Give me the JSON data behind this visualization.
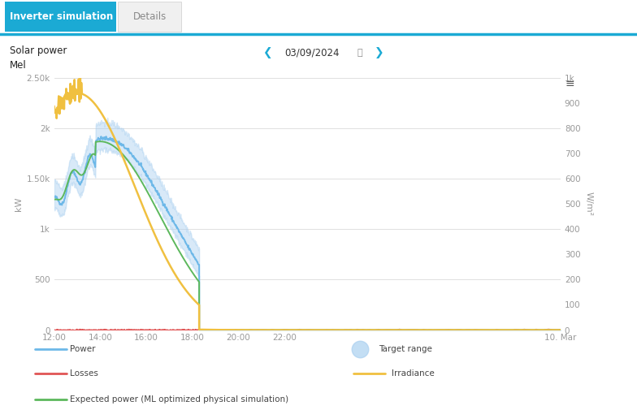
{
  "title_line1": "Solar power",
  "title_line2": "Mel",
  "date_label": "03/09/2024",
  "tab1": "Inverter simulation",
  "tab2": "Details",
  "tab1_color": "#1baad4",
  "tab2_color": "#f0f0f0",
  "tab2_text_color": "#888888",
  "background_color": "#ffffff",
  "separator_color": "#1baad4",
  "grid_color": "#e0e0e0",
  "left_ylabel": "kW",
  "right_ylabel": "W/m²",
  "left_ylim": [
    0,
    2500
  ],
  "right_ylim": [
    0,
    1000
  ],
  "left_ytick_vals": [
    0,
    500,
    1000,
    1500,
    2000,
    2500
  ],
  "left_yticklabels": [
    "0",
    "500",
    "1k",
    "1.50k",
    "2k",
    "2.50k"
  ],
  "right_ytick_vals": [
    0,
    100,
    200,
    300,
    400,
    500,
    600,
    700,
    800,
    900,
    1000
  ],
  "right_yticklabels": [
    "0",
    "100",
    "200",
    "300",
    "400",
    "500",
    "600",
    "700",
    "800",
    "900",
    "1k"
  ],
  "xtick_hours": [
    12,
    14,
    16,
    18,
    20,
    22,
    34
  ],
  "xtick_labels": [
    "12:00",
    "14:00",
    "16:00",
    "18:00",
    "20:00",
    "22:00",
    "10. Mar"
  ],
  "power_color": "#6db8e8",
  "losses_color": "#e05555",
  "expected_color": "#5cb85c",
  "irradiance_color": "#f0c040",
  "band_color": "#aad0f0",
  "band_alpha": 0.45,
  "tick_color": "#999999",
  "tick_fontsize": 7.5,
  "label_fontsize": 8,
  "title_fontsize": 8.5,
  "tab_fontsize": 8.5
}
